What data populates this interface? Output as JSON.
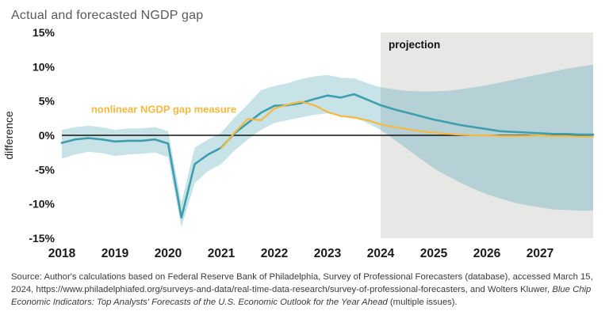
{
  "page": {
    "title": "Actual and forecasted NGDP gap"
  },
  "chart": {
    "ylabel": "difference",
    "projection_label": "projection",
    "series_label": "nonlinear NGDP gap measure",
    "colors": {
      "teal_line": "#3d9eae",
      "orange_line": "#f5b942",
      "band_fill": "#2f97a6",
      "projection_bg": "#e7e7e6",
      "zero_line": "#111111",
      "axis_text": "#1a1a1a",
      "title_text": "#5a5a5a"
    }
  },
  "source": {
    "part1": "Source: Author's calculations based on Federal Reserve Bank of Philadelphia, Survey of Professional Forecasters (database), accessed March 15, 2024, https://www.philadelphiafed.org/surveys-and-data/real-time-data-research/survey-of-professional-forecasters, and Wolters Kluwer, ",
    "part2_italic": "Blue Chip Economic Indicators: Top Analysts' Forecasts of the U.S. Economic Outlook for the Year Ahead",
    "part3": " (multiple issues)."
  },
  "chart_data": {
    "type": "line",
    "title": "Actual and forecasted NGDP gap",
    "xlabel": "",
    "ylabel": "difference",
    "xlim": [
      2018,
      2028
    ],
    "ylim": [
      -15,
      15
    ],
    "grid": false,
    "projection_start": 2024,
    "xticks": [
      2018,
      2019,
      2020,
      2021,
      2022,
      2023,
      2024,
      2025,
      2026,
      2027
    ],
    "yticks": [
      {
        "value": 15,
        "label": "15%"
      },
      {
        "value": 10,
        "label": "10%"
      },
      {
        "value": 5,
        "label": "5%"
      },
      {
        "value": 0,
        "label": "0%"
      },
      {
        "value": -5,
        "label": "-5%"
      },
      {
        "value": -10,
        "label": "-10%"
      },
      {
        "value": -15,
        "label": "-15%"
      }
    ],
    "x": [
      2018,
      2018.25,
      2018.5,
      2018.75,
      2019,
      2019.25,
      2019.5,
      2019.75,
      2020,
      2020.25,
      2020.5,
      2020.75,
      2021,
      2021.25,
      2021.5,
      2021.75,
      2022,
      2022.25,
      2022.5,
      2022.75,
      2023,
      2023.25,
      2023.5,
      2023.75,
      2024,
      2024.25,
      2024.5,
      2024.75,
      2025,
      2025.25,
      2025.5,
      2025.75,
      2026,
      2026.25,
      2026.5,
      2026.75,
      2027,
      2027.25,
      2027.5,
      2027.75,
      2028
    ],
    "series": [
      {
        "name": "actual and forecasted NGDP gap",
        "color": "#3d9eae",
        "values": [
          -1.1,
          -0.6,
          -0.4,
          -0.6,
          -0.9,
          -0.8,
          -0.8,
          -0.6,
          -1.2,
          -12.0,
          -4.2,
          -2.8,
          -1.8,
          0.3,
          1.8,
          3.3,
          4.3,
          4.4,
          4.7,
          5.3,
          5.8,
          5.5,
          6.0,
          5.2,
          4.4,
          3.8,
          3.3,
          2.8,
          2.3,
          1.9,
          1.5,
          1.2,
          0.9,
          0.6,
          0.5,
          0.4,
          0.3,
          0.2,
          0.2,
          0.1,
          0.1
        ]
      },
      {
        "name": "nonlinear NGDP gap measure",
        "color": "#f5b942",
        "values": [
          null,
          null,
          null,
          null,
          null,
          null,
          null,
          null,
          null,
          null,
          null,
          null,
          -1.9,
          0.4,
          2.4,
          2.2,
          3.9,
          4.5,
          4.9,
          4.4,
          3.4,
          2.8,
          2.6,
          2.2,
          1.6,
          1.2,
          0.9,
          0.6,
          0.4,
          0.2,
          0.1,
          0.0,
          0.0,
          -0.1,
          -0.1,
          -0.1,
          0.0,
          -0.1,
          -0.1,
          -0.2,
          -0.2
        ]
      }
    ],
    "band": {
      "name": "uncertainty band",
      "upper": [
        0.8,
        1.2,
        1.4,
        1.2,
        0.8,
        1.0,
        1.0,
        1.2,
        0.6,
        -9.8,
        -1.8,
        -0.6,
        0.4,
        2.6,
        4.5,
        6.6,
        7.2,
        7.6,
        8.2,
        8.6,
        8.8,
        8.4,
        8.3,
        7.6,
        7.0,
        6.7,
        6.5,
        6.4,
        6.4,
        6.5,
        6.7,
        7.0,
        7.3,
        7.7,
        8.1,
        8.5,
        8.9,
        9.3,
        9.7,
        10.0,
        10.3
      ],
      "lower": [
        -3.4,
        -2.8,
        -2.4,
        -2.6,
        -3.0,
        -2.8,
        -2.7,
        -2.5,
        -3.2,
        -13.4,
        -7.0,
        -5.2,
        -4.2,
        -2.2,
        -0.6,
        0.8,
        1.8,
        2.2,
        2.6,
        3.0,
        3.2,
        2.8,
        2.6,
        1.8,
        0.8,
        -0.6,
        -2.0,
        -3.4,
        -4.8,
        -5.9,
        -6.9,
        -7.8,
        -8.6,
        -9.2,
        -9.8,
        -10.2,
        -10.5,
        -10.8,
        -10.9,
        -11.0,
        -11.0
      ]
    }
  }
}
